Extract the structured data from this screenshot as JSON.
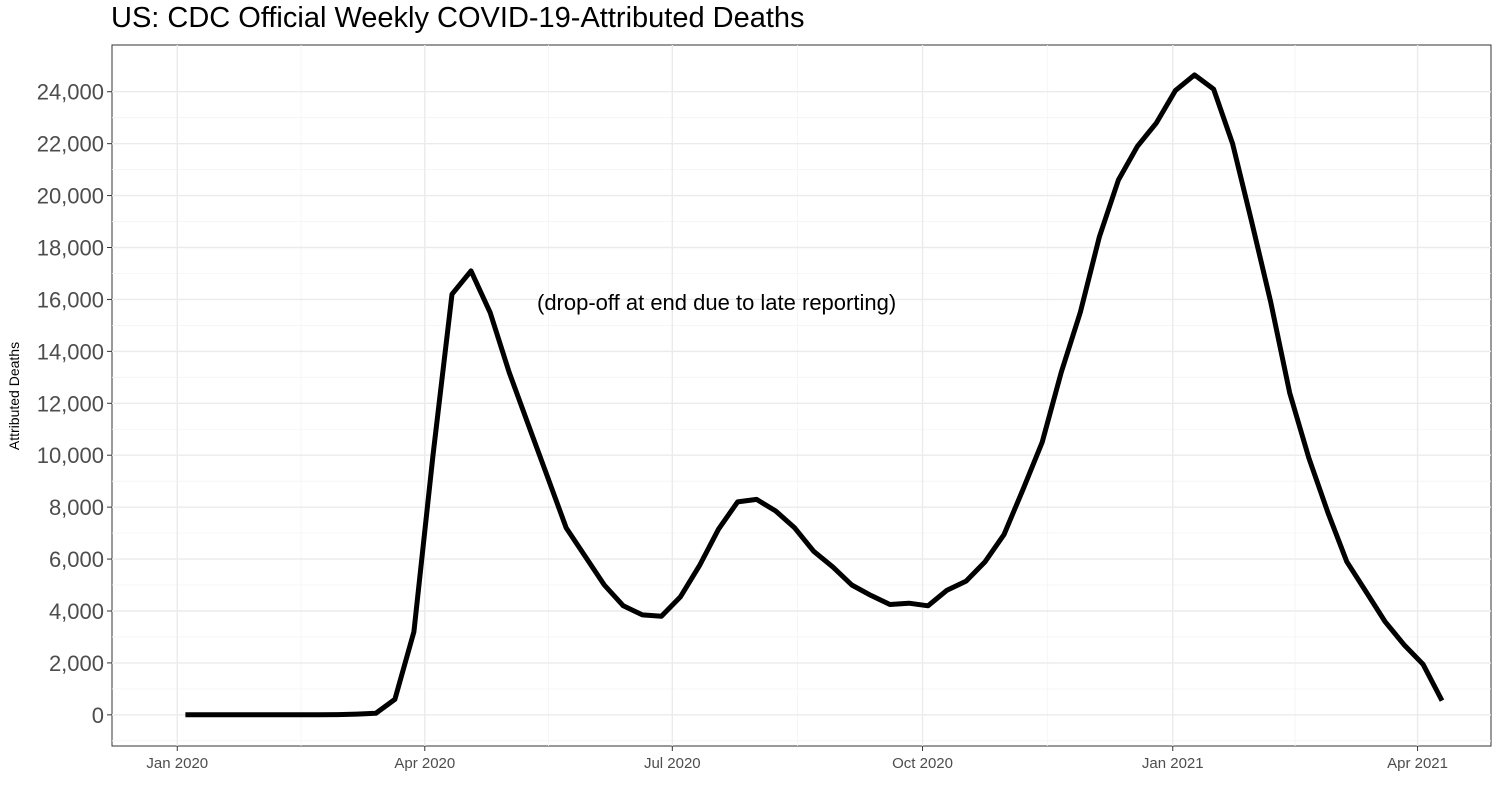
{
  "chart_data": {
    "type": "line",
    "title": "US: CDC Official Weekly COVID-19-Attributed Deaths",
    "xlabel": "",
    "ylabel": "Attributed Deaths",
    "annotation": "(drop-off at end due to late reporting)",
    "y_ticks": [
      0,
      2000,
      4000,
      6000,
      8000,
      10000,
      12000,
      14000,
      16000,
      18000,
      20000,
      22000,
      24000
    ],
    "y_tick_labels": [
      "0",
      "2,000",
      "4,000",
      "6,000",
      "8,000",
      "10,000",
      "12,000",
      "14,000",
      "16,000",
      "18,000",
      "20,000",
      "22,000",
      "24,000"
    ],
    "ylim": [
      -1200,
      25800
    ],
    "x_ticks": [
      "2020-01-01",
      "2020-04-01",
      "2020-07-01",
      "2020-10-01",
      "2021-01-01",
      "2021-04-01"
    ],
    "x_tick_labels": [
      "Jan 2020",
      "Apr 2020",
      "Jul 2020",
      "Oct 2020",
      "Jan 2021",
      "Apr 2021"
    ],
    "xlim": [
      "2019-12-08",
      "2021-04-28"
    ],
    "grid": true,
    "series": [
      {
        "color": "#000000",
        "x": [
          "2020-01-04",
          "2020-01-11",
          "2020-01-18",
          "2020-01-25",
          "2020-02-01",
          "2020-02-08",
          "2020-02-15",
          "2020-02-22",
          "2020-02-29",
          "2020-03-07",
          "2020-03-14",
          "2020-03-21",
          "2020-03-28",
          "2020-04-04",
          "2020-04-11",
          "2020-04-18",
          "2020-04-25",
          "2020-05-02",
          "2020-05-09",
          "2020-05-16",
          "2020-05-23",
          "2020-05-30",
          "2020-06-06",
          "2020-06-13",
          "2020-06-20",
          "2020-06-27",
          "2020-07-04",
          "2020-07-11",
          "2020-07-18",
          "2020-07-25",
          "2020-08-01",
          "2020-08-08",
          "2020-08-15",
          "2020-08-22",
          "2020-08-29",
          "2020-09-05",
          "2020-09-12",
          "2020-09-19",
          "2020-09-26",
          "2020-10-03",
          "2020-10-10",
          "2020-10-17",
          "2020-10-24",
          "2020-10-31",
          "2020-11-07",
          "2020-11-14",
          "2020-11-21",
          "2020-11-28",
          "2020-12-05",
          "2020-12-12",
          "2020-12-19",
          "2020-12-26",
          "2021-01-02",
          "2021-01-09",
          "2021-01-16",
          "2021-01-23",
          "2021-01-30",
          "2021-02-06",
          "2021-02-13",
          "2021-02-20",
          "2021-02-27",
          "2021-03-06",
          "2021-03-13",
          "2021-03-20",
          "2021-03-27",
          "2021-04-03",
          "2021-04-10"
        ],
        "values": [
          0,
          0,
          0,
          0,
          0,
          0,
          0,
          0,
          10,
          30,
          60,
          600,
          3200,
          10000,
          16200,
          17100,
          15500,
          13200,
          11200,
          9200,
          7200,
          6100,
          5000,
          4200,
          3850,
          3800,
          4550,
          5750,
          7150,
          8200,
          8300,
          7850,
          7200,
          6300,
          5700,
          5000,
          4600,
          4250,
          4300,
          4200,
          4800,
          5150,
          5900,
          6950,
          8700,
          10500,
          13200,
          15500,
          18400,
          20600,
          21900,
          22800,
          24050,
          24650,
          24100,
          22000,
          19000,
          15900,
          12400,
          9900,
          7800,
          5900,
          4750,
          3600,
          2700,
          1950,
          550
        ]
      }
    ]
  }
}
